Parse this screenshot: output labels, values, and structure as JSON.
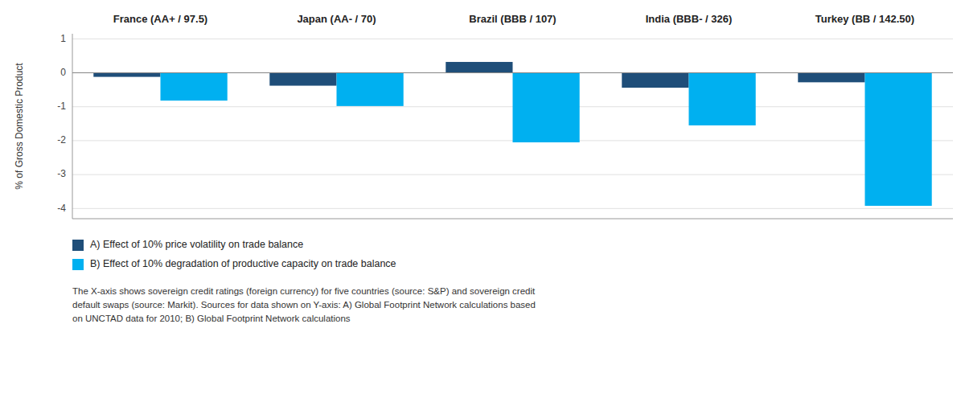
{
  "chart_data": {
    "type": "bar",
    "categories": [
      "France (AA+ / 97.5)",
      "Japan (AA- / 70)",
      "Brazil (BBB / 107)",
      "India (BBB- / 326)",
      "Turkey (BB / 142.50)"
    ],
    "series": [
      {
        "name": "A) Effect of 10% price volatility on trade balance",
        "color": "#1F4E79",
        "values": [
          -0.12,
          -0.38,
          0.32,
          -0.44,
          -0.28
        ]
      },
      {
        "name": "B) Effect of 10% degradation of productive capacity on trade balance",
        "color": "#00B0F0",
        "values": [
          -0.82,
          -0.98,
          -2.05,
          -1.55,
          -3.92
        ]
      }
    ],
    "ylabel": "% of Gross Domestic Product",
    "ylim": [
      -4.3,
      1.15
    ],
    "yticks": [
      1,
      0,
      -1,
      -2,
      -3,
      -4
    ],
    "grid": true,
    "legend": "bottom",
    "annotations": [
      "The X-axis shows sovereign credit ratings (foreign currency) for five countries (source: S&P) and sovereign credit\ndefault swaps (source: Markit). Sources for data shown on Y-axis: A) Global Footprint Network calculations based\non UNCTAD data for 2010; B) Global Footprint Network calculations"
    ]
  }
}
